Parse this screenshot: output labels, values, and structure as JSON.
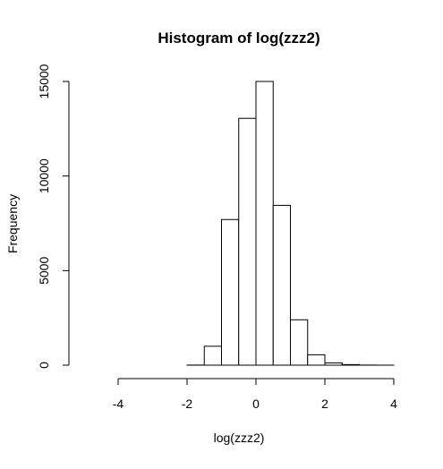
{
  "chart_data": {
    "type": "bar",
    "title": "Histogram of log(zzz2)",
    "xlabel": "log(zzz2)",
    "ylabel": "Frequency",
    "xlim": [
      -5,
      4
    ],
    "ylim": [
      0,
      15000
    ],
    "x_ticks": [
      -4,
      -2,
      0,
      2,
      4
    ],
    "y_ticks": [
      0,
      5000,
      10000,
      15000
    ],
    "bin_width": 0.5,
    "bins": [
      {
        "x0": -5.0,
        "x1": -4.5,
        "count": 0
      },
      {
        "x0": -4.5,
        "x1": -4.0,
        "count": 0
      },
      {
        "x0": -4.0,
        "x1": -3.5,
        "count": 0
      },
      {
        "x0": -3.5,
        "x1": -3.0,
        "count": 0
      },
      {
        "x0": -3.0,
        "x1": -2.5,
        "count": 0
      },
      {
        "x0": -2.5,
        "x1": -2.0,
        "count": 0
      },
      {
        "x0": -2.0,
        "x1": -1.5,
        "count": 5
      },
      {
        "x0": -1.5,
        "x1": -1.0,
        "count": 1000
      },
      {
        "x0": -1.0,
        "x1": -0.5,
        "count": 7700
      },
      {
        "x0": -0.5,
        "x1": 0.0,
        "count": 13050
      },
      {
        "x0": 0.0,
        "x1": 0.5,
        "count": 15000
      },
      {
        "x0": 0.5,
        "x1": 1.0,
        "count": 8450
      },
      {
        "x0": 1.0,
        "x1": 1.5,
        "count": 2400
      },
      {
        "x0": 1.5,
        "x1": 2.0,
        "count": 550
      },
      {
        "x0": 2.0,
        "x1": 2.5,
        "count": 120
      },
      {
        "x0": 2.5,
        "x1": 3.0,
        "count": 30
      },
      {
        "x0": 3.0,
        "x1": 3.5,
        "count": 5
      },
      {
        "x0": 3.5,
        "x1": 4.0,
        "count": 1
      }
    ]
  }
}
